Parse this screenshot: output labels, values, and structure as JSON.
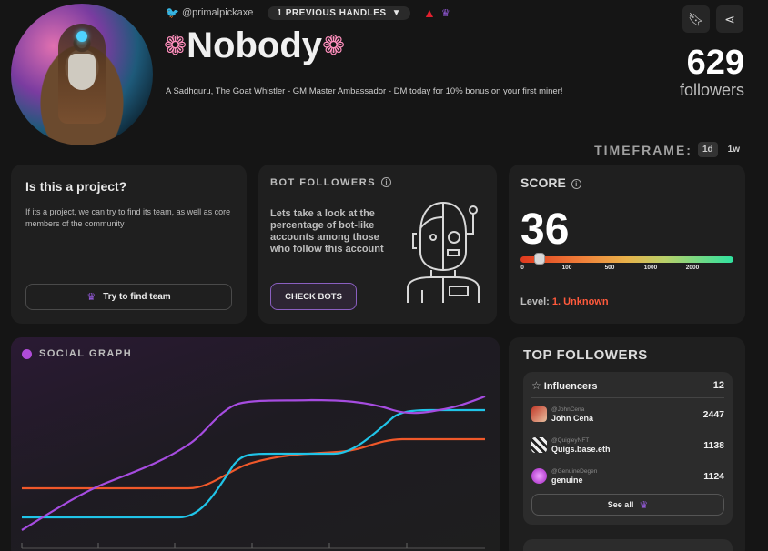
{
  "profile": {
    "handle": "@primalpickaxe",
    "previous_handles": "1 PREVIOUS HANDLES",
    "name": "Nobody",
    "bio": "A Sadhguru, The Goat Whistler - GM Master Ambassador - DM today for 10% bonus on your first miner!",
    "followers_count": "629",
    "followers_label": "followers"
  },
  "timeframe": {
    "label": "TIMEFRAME:",
    "options": [
      "1d",
      "1w"
    ],
    "selected": "1d"
  },
  "project_card": {
    "title": "Is this a project?",
    "description": "If its a project, we can try to find its team, as well as core members of the community",
    "button": "Try to find team"
  },
  "bot_card": {
    "title": "BOT FOLLOWERS",
    "description": "Lets take a look at the percentage of bot-like accounts among those who follow this account",
    "button": "CHECK BOTS"
  },
  "score_card": {
    "title": "SCORE",
    "value": "36",
    "ticks": [
      "0",
      "100",
      "500",
      "1000",
      "2000"
    ],
    "level_label": "Level:",
    "level_value": "1. Unknown",
    "knob_fraction": 0.09
  },
  "social_graph": {
    "title": "SOCIAL GRAPH"
  },
  "top_followers": {
    "title": "TOP FOLLOWERS",
    "group_label": "Influencers",
    "group_count": "12",
    "rows": [
      {
        "handle": "@JohnCena",
        "name": "John Cena",
        "count": "2447"
      },
      {
        "handle": "@QuigleyNFT",
        "name": "Quigs.base.eth",
        "count": "1138"
      },
      {
        "handle": "@GenuineDegen",
        "name": "genuine",
        "count": "1124"
      }
    ],
    "see_all": "See all"
  },
  "colors": {
    "accent_purple": "#9b5de5",
    "line_purple": "#a64ce0",
    "line_cyan": "#20c4e8",
    "line_orange": "#f0582a",
    "level_red": "#ff5a3c"
  }
}
